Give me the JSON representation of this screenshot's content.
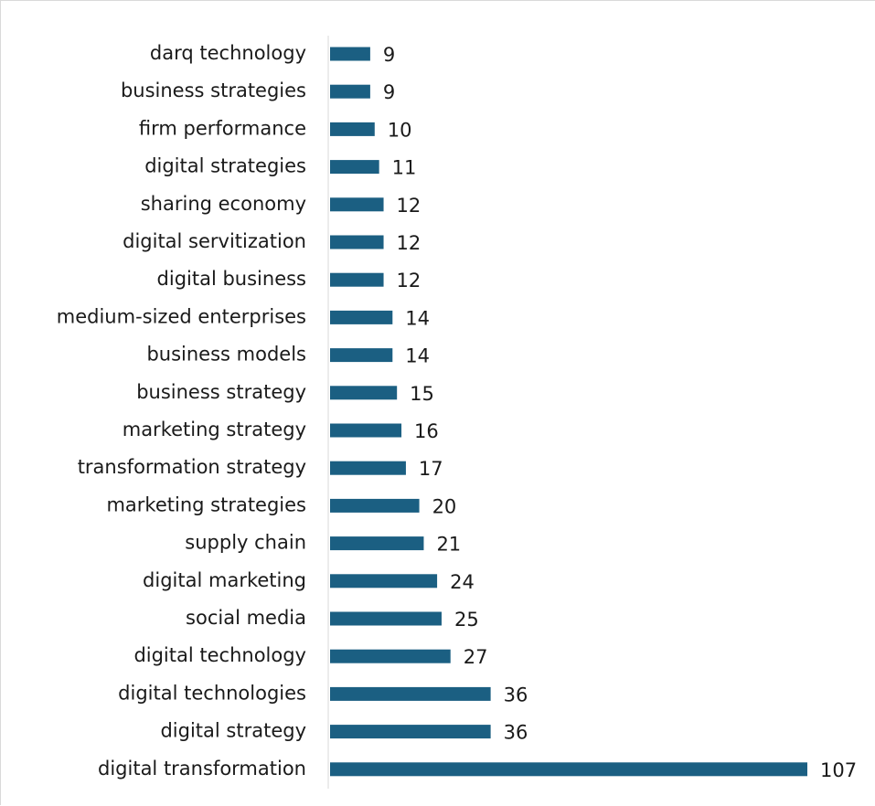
{
  "chart_data": {
    "type": "bar",
    "orientation": "horizontal",
    "title": "",
    "xlabel": "",
    "ylabel": "",
    "categories": [
      "darq technology",
      "business strategies",
      "firm performance",
      "digital strategies",
      "sharing economy",
      "digital servitization",
      "digital business",
      "medium-sized enterprises",
      "business models",
      "business strategy",
      "marketing strategy",
      "transformation strategy",
      "marketing strategies",
      "supply chain",
      "digital marketing",
      "social media",
      "digital technology",
      "digital technologies",
      "digital strategy",
      "digital transformation"
    ],
    "values": [
      9,
      9,
      10,
      11,
      12,
      12,
      12,
      14,
      14,
      15,
      16,
      17,
      20,
      21,
      24,
      25,
      27,
      36,
      36,
      107
    ],
    "xlim": [
      0,
      107
    ],
    "bar_color": "#1b5f82",
    "axis_color": "#d9d9d9",
    "grid": false,
    "legend": "none",
    "data_labels": true
  }
}
